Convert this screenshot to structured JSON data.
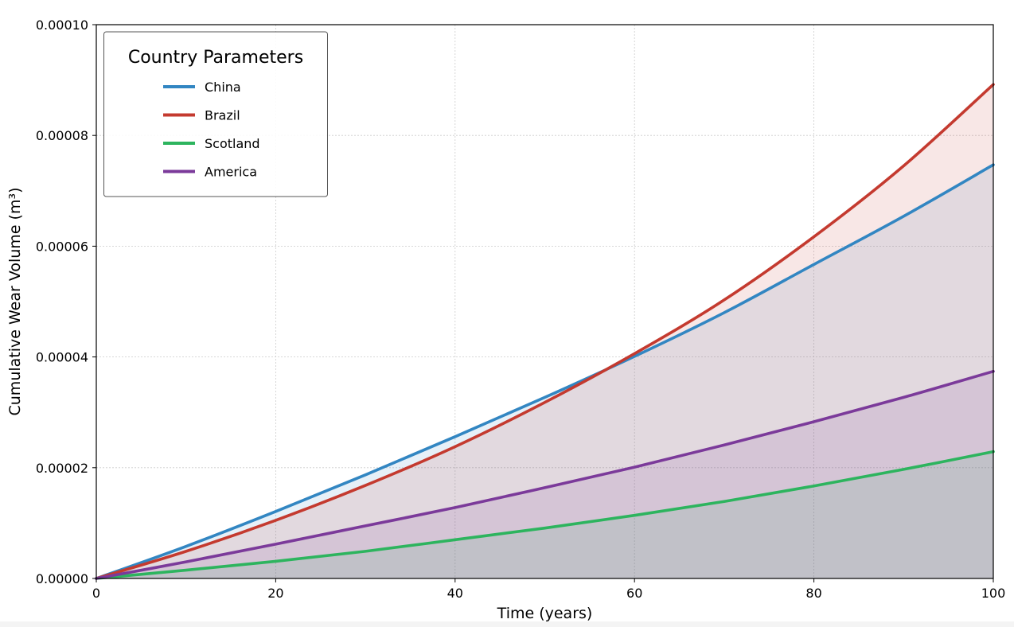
{
  "chart_data": {
    "type": "line",
    "xlabel": "Time (years)",
    "ylabel": "Cumulative Wear Volume (m³)",
    "xlim": [
      0,
      100
    ],
    "ylim": [
      0,
      0.0001
    ],
    "x_ticks": [
      0,
      20,
      40,
      60,
      80,
      100
    ],
    "x_tick_labels": [
      "0",
      "20",
      "40",
      "60",
      "80",
      "100"
    ],
    "y_ticks": [
      0,
      2e-05,
      4e-05,
      6e-05,
      8e-05,
      0.0001
    ],
    "y_tick_labels": [
      "0.00000",
      "0.00002",
      "0.00004",
      "0.00006",
      "0.00008",
      "0.00010"
    ],
    "grid": true,
    "filled_under_lines": true,
    "legend": {
      "title": "Country Parameters",
      "placement": "top-left"
    },
    "x": [
      0,
      10,
      20,
      30,
      40,
      50,
      60,
      70,
      80,
      90,
      100
    ],
    "series": [
      {
        "name": "China",
        "color": "#3286c2",
        "values": [
          0,
          5.8e-06,
          1.21e-05,
          1.87e-05,
          2.56e-05,
          3.27e-05,
          4.01e-05,
          4.8e-05,
          5.67e-05,
          6.54e-05,
          7.47e-05
        ]
      },
      {
        "name": "Brazil",
        "color": "#c43a2f",
        "values": [
          0,
          4.9e-06,
          1.05e-05,
          1.68e-05,
          2.38e-05,
          3.18e-05,
          4.06e-05,
          5.03e-05,
          6.17e-05,
          7.45e-05,
          8.92e-05
        ]
      },
      {
        "name": "Scotland",
        "color": "#2db45e",
        "values": [
          0,
          1.5e-06,
          3.1e-06,
          4.9e-06,
          7e-06,
          9.1e-06,
          1.14e-05,
          1.39e-05,
          1.67e-05,
          1.97e-05,
          2.29e-05
        ]
      },
      {
        "name": "America",
        "color": "#7b3a9a",
        "values": [
          0,
          3e-06,
          6.2e-06,
          9.5e-06,
          1.28e-05,
          1.64e-05,
          2.01e-05,
          2.41e-05,
          2.83e-05,
          3.27e-05,
          3.74e-05
        ]
      }
    ]
  }
}
